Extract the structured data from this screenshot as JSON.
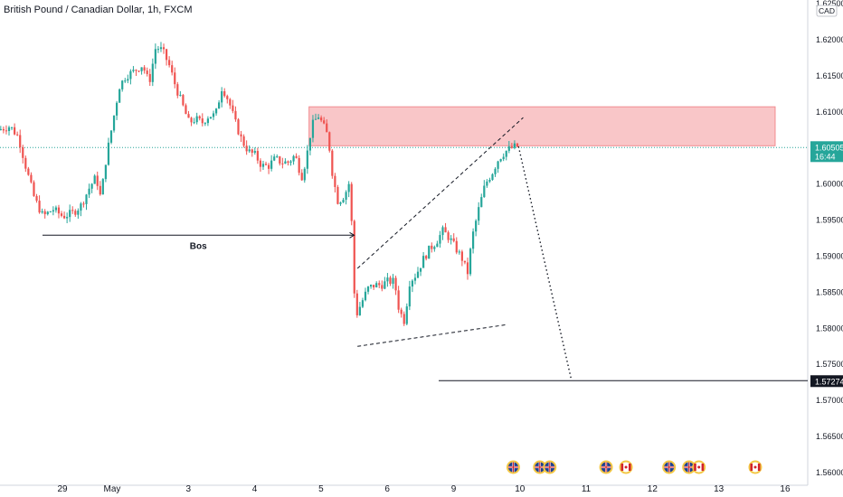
{
  "title": "British Pound / Canadian Dollar, 1h, FXCM",
  "currency_badge": "CAD",
  "colors": {
    "up": "#26a69a",
    "down": "#ef5350",
    "zone_fill": "#f9c6c8",
    "zone_border": "#f28b90",
    "price_line": "#26a69a",
    "target_badge": "#131722"
  },
  "chart_data": {
    "type": "candlestick",
    "symbol": "GBPCAD",
    "timeframe": "1h",
    "ylim": [
      1.56,
      1.625
    ],
    "y_ticks": [
      "1.62500",
      "1.62000",
      "1.61500",
      "1.61000",
      "1.60500",
      "1.60000",
      "1.59500",
      "1.59000",
      "1.58500",
      "1.58000",
      "1.57500",
      "1.57000",
      "1.56500",
      "1.56000"
    ],
    "x_ticks": [
      {
        "label": "29",
        "t": 0.0
      },
      {
        "label": "May",
        "t": 0.75
      },
      {
        "label": "3",
        "t": 1.9
      },
      {
        "label": "4",
        "t": 2.9
      },
      {
        "label": "5",
        "t": 3.9
      },
      {
        "label": "6",
        "t": 4.9
      },
      {
        "label": "9",
        "t": 5.9
      },
      {
        "label": "10",
        "t": 6.9
      },
      {
        "label": "11",
        "t": 7.9
      },
      {
        "label": "12",
        "t": 8.9
      },
      {
        "label": "13",
        "t": 9.9
      },
      {
        "label": "16",
        "t": 10.9
      }
    ],
    "x_range": [
      -0.93,
      11.5
    ],
    "price_path": [
      [
        -0.93,
        1.6075
      ],
      [
        -0.75,
        1.608
      ],
      [
        -0.62,
        1.6065
      ],
      [
        -0.5,
        1.602
      ],
      [
        -0.38,
        1.598
      ],
      [
        -0.25,
        1.5955
      ],
      [
        -0.1,
        1.5965
      ],
      [
        0.05,
        1.5955
      ],
      [
        0.2,
        1.596
      ],
      [
        0.32,
        1.597
      ],
      [
        0.45,
        1.5995
      ],
      [
        0.55,
        1.601
      ],
      [
        0.62,
        1.598
      ],
      [
        0.7,
        1.6035
      ],
      [
        0.8,
        1.6085
      ],
      [
        0.9,
        1.6135
      ],
      [
        1.0,
        1.615
      ],
      [
        1.1,
        1.6155
      ],
      [
        1.25,
        1.6165
      ],
      [
        1.35,
        1.614
      ],
      [
        1.45,
        1.619
      ],
      [
        1.55,
        1.6185
      ],
      [
        1.65,
        1.6165
      ],
      [
        1.75,
        1.6135
      ],
      [
        1.85,
        1.611
      ],
      [
        1.95,
        1.6085
      ],
      [
        2.05,
        1.609
      ],
      [
        2.15,
        1.6085
      ],
      [
        2.25,
        1.6095
      ],
      [
        2.35,
        1.6095
      ],
      [
        2.45,
        1.6135
      ],
      [
        2.55,
        1.6115
      ],
      [
        2.65,
        1.6085
      ],
      [
        2.75,
        1.606
      ],
      [
        2.85,
        1.6045
      ],
      [
        2.95,
        1.604
      ],
      [
        3.05,
        1.6025
      ],
      [
        3.15,
        1.6025
      ],
      [
        3.25,
        1.6035
      ],
      [
        3.35,
        1.603
      ],
      [
        3.45,
        1.603
      ],
      [
        3.55,
        1.604
      ],
      [
        3.65,
        1.601
      ],
      [
        3.72,
        1.6035
      ],
      [
        3.8,
        1.608
      ],
      [
        3.9,
        1.6095
      ],
      [
        3.98,
        1.608
      ],
      [
        4.05,
        1.6065
      ],
      [
        4.12,
        1.601
      ],
      [
        4.2,
        1.5975
      ],
      [
        4.3,
        1.5985
      ],
      [
        4.38,
        1.6005
      ],
      [
        4.42,
        1.5905
      ],
      [
        4.46,
        1.5815
      ],
      [
        4.55,
        1.5835
      ],
      [
        4.65,
        1.5855
      ],
      [
        4.75,
        1.586
      ],
      [
        4.85,
        1.586
      ],
      [
        4.95,
        1.5865
      ],
      [
        5.05,
        1.5865
      ],
      [
        5.12,
        1.5825
      ],
      [
        5.2,
        1.581
      ],
      [
        5.28,
        1.5865
      ],
      [
        5.38,
        1.5875
      ],
      [
        5.48,
        1.5895
      ],
      [
        5.58,
        1.591
      ],
      [
        5.68,
        1.592
      ],
      [
        5.78,
        1.5935
      ],
      [
        5.88,
        1.5925
      ],
      [
        5.98,
        1.591
      ],
      [
        6.08,
        1.5895
      ],
      [
        6.15,
        1.5875
      ],
      [
        6.22,
        1.5925
      ],
      [
        6.32,
        1.5965
      ],
      [
        6.42,
        1.6
      ],
      [
        6.52,
        1.6015
      ],
      [
        6.62,
        1.6035
      ],
      [
        6.72,
        1.6045
      ],
      [
        6.82,
        1.605
      ],
      [
        6.88,
        1.6052
      ]
    ],
    "current_price": {
      "label": "1.60505",
      "countdown": "16:44",
      "value": 1.60505
    },
    "target_price": {
      "label": "1.57274",
      "value": 1.57274
    },
    "supply_zone": {
      "t0": 3.72,
      "t1": 10.75,
      "y0": 1.6053,
      "y1": 1.6107
    },
    "bos": {
      "label": "Bos",
      "y": 1.5929,
      "t0": -0.3,
      "t1": 4.4
    },
    "wedge_upper": [
      [
        4.45,
        1.5883
      ],
      [
        6.95,
        1.6092
      ]
    ],
    "wedge_lower": [
      [
        4.45,
        1.5775
      ],
      [
        6.7,
        1.5805
      ]
    ],
    "projection": [
      [
        6.88,
        1.6052
      ],
      [
        7.67,
        1.5731
      ]
    ],
    "events": [
      {
        "t": 6.8,
        "flag": "uk"
      },
      {
        "t": 7.2,
        "flag": "uk"
      },
      {
        "t": 7.35,
        "flag": "uk"
      },
      {
        "t": 8.2,
        "flag": "uk"
      },
      {
        "t": 8.5,
        "flag": "ca"
      },
      {
        "t": 9.15,
        "flag": "uk"
      },
      {
        "t": 9.45,
        "flag": "uk"
      },
      {
        "t": 9.6,
        "flag": "ca"
      },
      {
        "t": 10.45,
        "flag": "ca"
      }
    ]
  }
}
